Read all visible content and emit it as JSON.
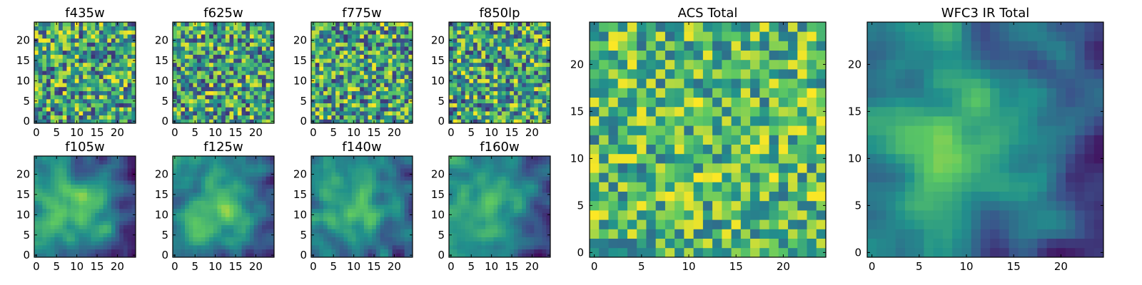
{
  "figure": {
    "colormap": "viridis",
    "colormap_stops": [
      "#440154",
      "#3b528b",
      "#21918c",
      "#5ec962",
      "#fde725"
    ]
  },
  "chart_data": [
    {
      "type": "heatmap",
      "title": "f435w",
      "xlim": [
        0,
        24
      ],
      "ylim": [
        0,
        24
      ],
      "xticks": [
        "0",
        "5",
        "10",
        "15",
        "20"
      ],
      "yticks": [
        "0",
        "5",
        "10",
        "15",
        "20"
      ],
      "grid": false,
      "pattern": "noise",
      "seed": 11
    },
    {
      "type": "heatmap",
      "title": "f625w",
      "xlim": [
        0,
        24
      ],
      "ylim": [
        0,
        24
      ],
      "xticks": [
        "0",
        "5",
        "10",
        "15",
        "20"
      ],
      "yticks": [
        "0",
        "5",
        "10",
        "15",
        "20"
      ],
      "grid": false,
      "pattern": "noise",
      "seed": 23
    },
    {
      "type": "heatmap",
      "title": "f775w",
      "xlim": [
        0,
        24
      ],
      "ylim": [
        0,
        24
      ],
      "xticks": [
        "0",
        "5",
        "10",
        "15",
        "20"
      ],
      "yticks": [
        "0",
        "5",
        "10",
        "15",
        "20"
      ],
      "grid": false,
      "pattern": "noise",
      "seed": 37
    },
    {
      "type": "heatmap",
      "title": "f850lp",
      "xlim": [
        0,
        24
      ],
      "ylim": [
        0,
        24
      ],
      "xticks": [
        "0",
        "5",
        "10",
        "15",
        "20"
      ],
      "yticks": [
        "0",
        "5",
        "10",
        "15",
        "20"
      ],
      "grid": false,
      "pattern": "noise",
      "seed": 41
    },
    {
      "type": "heatmap",
      "title": "f105w",
      "xlim": [
        0,
        24
      ],
      "ylim": [
        0,
        24
      ],
      "xticks": [
        "0",
        "5",
        "10",
        "15",
        "20"
      ],
      "yticks": [
        "0",
        "5",
        "10",
        "15",
        "20"
      ],
      "grid": false,
      "pattern": "smooth",
      "seed": 53
    },
    {
      "type": "heatmap",
      "title": "f125w",
      "xlim": [
        0,
        24
      ],
      "ylim": [
        0,
        24
      ],
      "xticks": [
        "0",
        "5",
        "10",
        "15",
        "20"
      ],
      "yticks": [
        "0",
        "5",
        "10",
        "15",
        "20"
      ],
      "grid": false,
      "pattern": "smooth",
      "seed": 67
    },
    {
      "type": "heatmap",
      "title": "f140w",
      "xlim": [
        0,
        24
      ],
      "ylim": [
        0,
        24
      ],
      "xticks": [
        "0",
        "5",
        "10",
        "15",
        "20"
      ],
      "yticks": [
        "0",
        "5",
        "10",
        "15",
        "20"
      ],
      "grid": false,
      "pattern": "smooth",
      "seed": 79
    },
    {
      "type": "heatmap",
      "title": "f160w",
      "xlim": [
        0,
        24
      ],
      "ylim": [
        0,
        24
      ],
      "xticks": [
        "0",
        "5",
        "10",
        "15",
        "20"
      ],
      "yticks": [
        "0",
        "5",
        "10",
        "15",
        "20"
      ],
      "grid": false,
      "pattern": "smooth",
      "seed": 83
    },
    {
      "type": "heatmap",
      "title": "ACS Total",
      "xlim": [
        0,
        24
      ],
      "ylim": [
        0,
        24
      ],
      "xticks": [
        "0",
        "5",
        "10",
        "15",
        "20"
      ],
      "yticks": [
        "0",
        "5",
        "10",
        "15",
        "20"
      ],
      "grid": false,
      "pattern": "noise-bright",
      "seed": 97
    },
    {
      "type": "heatmap",
      "title": "WFC3 IR Total",
      "xlim": [
        0,
        24
      ],
      "ylim": [
        0,
        24
      ],
      "xticks": [
        "0",
        "5",
        "10",
        "15",
        "20"
      ],
      "yticks": [
        "0",
        "5",
        "10",
        "15",
        "20"
      ],
      "grid": false,
      "pattern": "smooth-bright",
      "seed": 101
    }
  ]
}
